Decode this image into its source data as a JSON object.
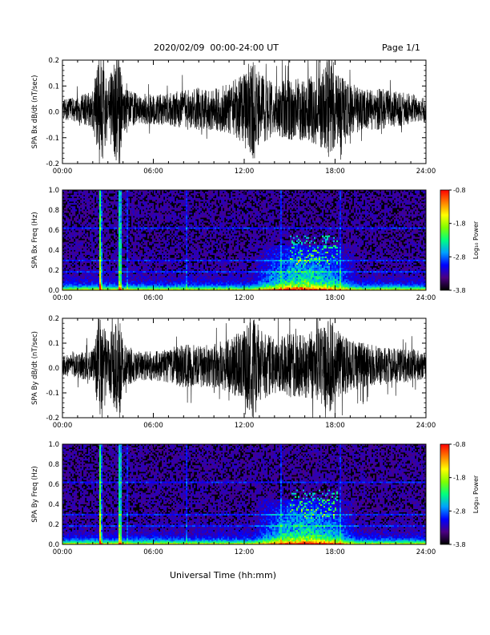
{
  "header": {
    "title": "2020/02/09  00:00-24:00 UT",
    "page": "Page 1/1"
  },
  "x_axis_title": "Universal Time (hh:mm)",
  "colorbar": {
    "label": "Log₁₀ Power",
    "ticks": [
      "-0.8",
      "-1.8",
      "-2.8",
      "-3.8"
    ],
    "colormap": [
      "#000000",
      "#4b0082",
      "#0000ff",
      "#00a0ff",
      "#00ff80",
      "#80ff00",
      "#ffff00",
      "#ff8000",
      "#ff0000"
    ]
  },
  "chart_data": [
    {
      "type": "line",
      "ylabel": "SPA Bx dB/dt (nT/sec)",
      "xlim": [
        0,
        24
      ],
      "ylim": [
        -0.2,
        0.2
      ],
      "xticks": [
        "00:00",
        "06:00",
        "12:00",
        "18:00",
        "24:00"
      ],
      "yticks": [
        "-0.2",
        "-0.1",
        "0.0",
        "0.1",
        "0.2"
      ],
      "color": "#000000",
      "amplitude_envelope": {
        "x": [
          0,
          1,
          2,
          2.4,
          2.6,
          3,
          3.6,
          3.8,
          4,
          5,
          6,
          7,
          8,
          9,
          10,
          11,
          12,
          12.6,
          13,
          14,
          15,
          16,
          17,
          17.6,
          18,
          19,
          20,
          21,
          22,
          23,
          24
        ],
        "y": [
          0.04,
          0.05,
          0.07,
          0.22,
          0.22,
          0.1,
          0.22,
          0.22,
          0.08,
          0.06,
          0.06,
          0.06,
          0.08,
          0.08,
          0.08,
          0.1,
          0.14,
          0.22,
          0.14,
          0.1,
          0.12,
          0.12,
          0.14,
          0.22,
          0.14,
          0.1,
          0.08,
          0.08,
          0.07,
          0.06,
          0.05
        ]
      }
    },
    {
      "type": "heatmap",
      "ylabel": "SPA Bx Freq (Hz)",
      "xlim": [
        0,
        24
      ],
      "ylim": [
        0,
        1.0
      ],
      "xticks": [
        "00:00",
        "06:00",
        "12:00",
        "18:00",
        "24:00"
      ],
      "yticks": [
        "0.0",
        "0.2",
        "0.4",
        "0.6",
        "0.8",
        "1.0"
      ],
      "zlim": [
        -3.8,
        -0.8
      ],
      "strong_events_hours": [
        2.5,
        3.8
      ],
      "active_interval_hours": [
        12.5,
        19.5
      ]
    },
    {
      "type": "line",
      "ylabel": "SPA By dB/dt (nT/sec)",
      "xlim": [
        0,
        24
      ],
      "ylim": [
        -0.2,
        0.2
      ],
      "xticks": [
        "00:00",
        "06:00",
        "12:00",
        "18:00",
        "24:00"
      ],
      "yticks": [
        "-0.2",
        "-0.1",
        "0.0",
        "0.1",
        "0.2"
      ],
      "color": "#000000",
      "amplitude_envelope": {
        "x": [
          0,
          1,
          2,
          2.4,
          2.6,
          3,
          3.6,
          3.8,
          4,
          5,
          6,
          7,
          8,
          9,
          10,
          11,
          12,
          12.6,
          13,
          14,
          15,
          16,
          17,
          17.6,
          18,
          19,
          20,
          21,
          22,
          23,
          24
        ],
        "y": [
          0.04,
          0.05,
          0.07,
          0.22,
          0.22,
          0.1,
          0.22,
          0.22,
          0.09,
          0.06,
          0.06,
          0.07,
          0.09,
          0.08,
          0.09,
          0.11,
          0.15,
          0.22,
          0.15,
          0.11,
          0.13,
          0.13,
          0.15,
          0.22,
          0.15,
          0.1,
          0.09,
          0.08,
          0.07,
          0.07,
          0.05
        ]
      }
    },
    {
      "type": "heatmap",
      "ylabel": "SPA By Freq (Hz)",
      "xlim": [
        0,
        24
      ],
      "ylim": [
        0,
        1.0
      ],
      "xticks": [
        "00:00",
        "06:00",
        "12:00",
        "18:00",
        "24:00"
      ],
      "yticks": [
        "0.0",
        "0.2",
        "0.4",
        "0.6",
        "0.8",
        "1.0"
      ],
      "zlim": [
        -3.8,
        -0.8
      ],
      "strong_events_hours": [
        2.5,
        3.8
      ],
      "active_interval_hours": [
        12.5,
        19.5
      ]
    }
  ]
}
